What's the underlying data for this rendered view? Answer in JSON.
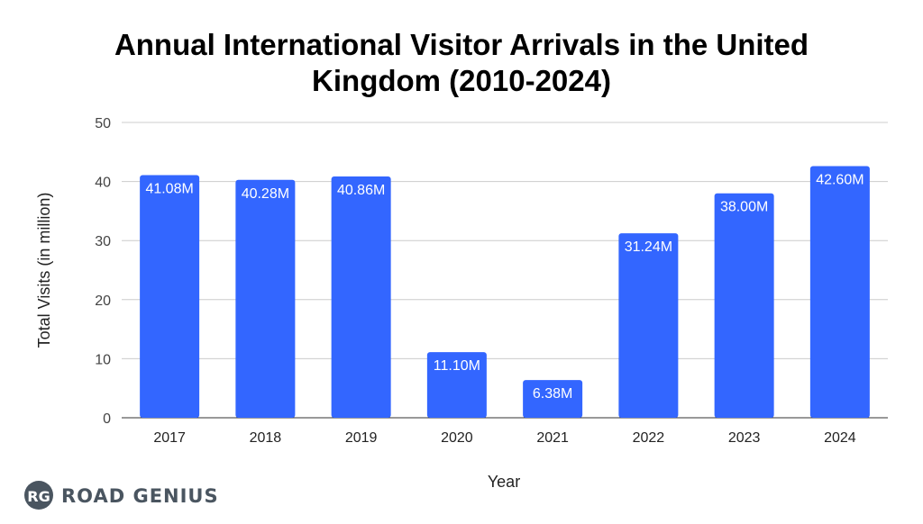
{
  "chart_data": {
    "type": "bar",
    "title": "Annual International Visitor Arrivals in the United Kingdom (2010-2024)",
    "title_lines": [
      "Annual International Visitor Arrivals in the United",
      "Kingdom (2010-2024)"
    ],
    "categories": [
      "2017",
      "2018",
      "2019",
      "2020",
      "2021",
      "2022",
      "2023",
      "2024"
    ],
    "values": [
      41.08,
      40.28,
      40.86,
      11.1,
      6.38,
      31.24,
      38.0,
      42.6
    ],
    "data_labels": [
      "41.08M",
      "40.28M",
      "40.86M",
      "11.10M",
      "6.38M",
      "31.24M",
      "38.00M",
      "42.60M"
    ],
    "xlabel": "Year",
    "ylabel": "Total Visits (in million)",
    "ylim": [
      0,
      50
    ],
    "yticks": [
      0,
      10,
      20,
      30,
      40,
      50
    ],
    "grid": true,
    "legend": "none",
    "bar_color": "#3366ff"
  },
  "brand": {
    "monogram": "RG",
    "name": "ROAD GENIUS",
    "color": "#4a5560"
  }
}
